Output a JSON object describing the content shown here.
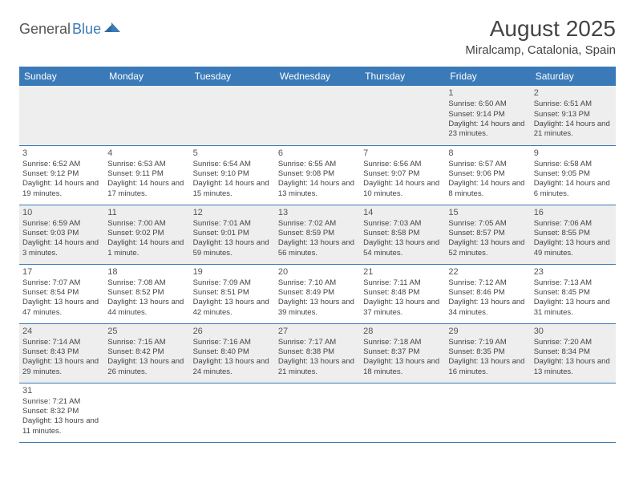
{
  "brand": {
    "part1": "General",
    "part2": "Blue"
  },
  "title": "August 2025",
  "location": "Miralcamp, Catalonia, Spain",
  "colors": {
    "header_bg": "#3a7ab8",
    "header_text": "#ffffff",
    "row_alt_bg": "#eeeeee",
    "text": "#444444",
    "border": "#3a7ab8"
  },
  "day_headers": [
    "Sunday",
    "Monday",
    "Tuesday",
    "Wednesday",
    "Thursday",
    "Friday",
    "Saturday"
  ],
  "weeks": [
    [
      null,
      null,
      null,
      null,
      null,
      {
        "n": "1",
        "sr": "Sunrise: 6:50 AM",
        "ss": "Sunset: 9:14 PM",
        "dl": "Daylight: 14 hours and 23 minutes."
      },
      {
        "n": "2",
        "sr": "Sunrise: 6:51 AM",
        "ss": "Sunset: 9:13 PM",
        "dl": "Daylight: 14 hours and 21 minutes."
      }
    ],
    [
      {
        "n": "3",
        "sr": "Sunrise: 6:52 AM",
        "ss": "Sunset: 9:12 PM",
        "dl": "Daylight: 14 hours and 19 minutes."
      },
      {
        "n": "4",
        "sr": "Sunrise: 6:53 AM",
        "ss": "Sunset: 9:11 PM",
        "dl": "Daylight: 14 hours and 17 minutes."
      },
      {
        "n": "5",
        "sr": "Sunrise: 6:54 AM",
        "ss": "Sunset: 9:10 PM",
        "dl": "Daylight: 14 hours and 15 minutes."
      },
      {
        "n": "6",
        "sr": "Sunrise: 6:55 AM",
        "ss": "Sunset: 9:08 PM",
        "dl": "Daylight: 14 hours and 13 minutes."
      },
      {
        "n": "7",
        "sr": "Sunrise: 6:56 AM",
        "ss": "Sunset: 9:07 PM",
        "dl": "Daylight: 14 hours and 10 minutes."
      },
      {
        "n": "8",
        "sr": "Sunrise: 6:57 AM",
        "ss": "Sunset: 9:06 PM",
        "dl": "Daylight: 14 hours and 8 minutes."
      },
      {
        "n": "9",
        "sr": "Sunrise: 6:58 AM",
        "ss": "Sunset: 9:05 PM",
        "dl": "Daylight: 14 hours and 6 minutes."
      }
    ],
    [
      {
        "n": "10",
        "sr": "Sunrise: 6:59 AM",
        "ss": "Sunset: 9:03 PM",
        "dl": "Daylight: 14 hours and 3 minutes."
      },
      {
        "n": "11",
        "sr": "Sunrise: 7:00 AM",
        "ss": "Sunset: 9:02 PM",
        "dl": "Daylight: 14 hours and 1 minute."
      },
      {
        "n": "12",
        "sr": "Sunrise: 7:01 AM",
        "ss": "Sunset: 9:01 PM",
        "dl": "Daylight: 13 hours and 59 minutes."
      },
      {
        "n": "13",
        "sr": "Sunrise: 7:02 AM",
        "ss": "Sunset: 8:59 PM",
        "dl": "Daylight: 13 hours and 56 minutes."
      },
      {
        "n": "14",
        "sr": "Sunrise: 7:03 AM",
        "ss": "Sunset: 8:58 PM",
        "dl": "Daylight: 13 hours and 54 minutes."
      },
      {
        "n": "15",
        "sr": "Sunrise: 7:05 AM",
        "ss": "Sunset: 8:57 PM",
        "dl": "Daylight: 13 hours and 52 minutes."
      },
      {
        "n": "16",
        "sr": "Sunrise: 7:06 AM",
        "ss": "Sunset: 8:55 PM",
        "dl": "Daylight: 13 hours and 49 minutes."
      }
    ],
    [
      {
        "n": "17",
        "sr": "Sunrise: 7:07 AM",
        "ss": "Sunset: 8:54 PM",
        "dl": "Daylight: 13 hours and 47 minutes."
      },
      {
        "n": "18",
        "sr": "Sunrise: 7:08 AM",
        "ss": "Sunset: 8:52 PM",
        "dl": "Daylight: 13 hours and 44 minutes."
      },
      {
        "n": "19",
        "sr": "Sunrise: 7:09 AM",
        "ss": "Sunset: 8:51 PM",
        "dl": "Daylight: 13 hours and 42 minutes."
      },
      {
        "n": "20",
        "sr": "Sunrise: 7:10 AM",
        "ss": "Sunset: 8:49 PM",
        "dl": "Daylight: 13 hours and 39 minutes."
      },
      {
        "n": "21",
        "sr": "Sunrise: 7:11 AM",
        "ss": "Sunset: 8:48 PM",
        "dl": "Daylight: 13 hours and 37 minutes."
      },
      {
        "n": "22",
        "sr": "Sunrise: 7:12 AM",
        "ss": "Sunset: 8:46 PM",
        "dl": "Daylight: 13 hours and 34 minutes."
      },
      {
        "n": "23",
        "sr": "Sunrise: 7:13 AM",
        "ss": "Sunset: 8:45 PM",
        "dl": "Daylight: 13 hours and 31 minutes."
      }
    ],
    [
      {
        "n": "24",
        "sr": "Sunrise: 7:14 AM",
        "ss": "Sunset: 8:43 PM",
        "dl": "Daylight: 13 hours and 29 minutes."
      },
      {
        "n": "25",
        "sr": "Sunrise: 7:15 AM",
        "ss": "Sunset: 8:42 PM",
        "dl": "Daylight: 13 hours and 26 minutes."
      },
      {
        "n": "26",
        "sr": "Sunrise: 7:16 AM",
        "ss": "Sunset: 8:40 PM",
        "dl": "Daylight: 13 hours and 24 minutes."
      },
      {
        "n": "27",
        "sr": "Sunrise: 7:17 AM",
        "ss": "Sunset: 8:38 PM",
        "dl": "Daylight: 13 hours and 21 minutes."
      },
      {
        "n": "28",
        "sr": "Sunrise: 7:18 AM",
        "ss": "Sunset: 8:37 PM",
        "dl": "Daylight: 13 hours and 18 minutes."
      },
      {
        "n": "29",
        "sr": "Sunrise: 7:19 AM",
        "ss": "Sunset: 8:35 PM",
        "dl": "Daylight: 13 hours and 16 minutes."
      },
      {
        "n": "30",
        "sr": "Sunrise: 7:20 AM",
        "ss": "Sunset: 8:34 PM",
        "dl": "Daylight: 13 hours and 13 minutes."
      }
    ],
    [
      {
        "n": "31",
        "sr": "Sunrise: 7:21 AM",
        "ss": "Sunset: 8:32 PM",
        "dl": "Daylight: 13 hours and 11 minutes."
      },
      null,
      null,
      null,
      null,
      null,
      null
    ]
  ]
}
